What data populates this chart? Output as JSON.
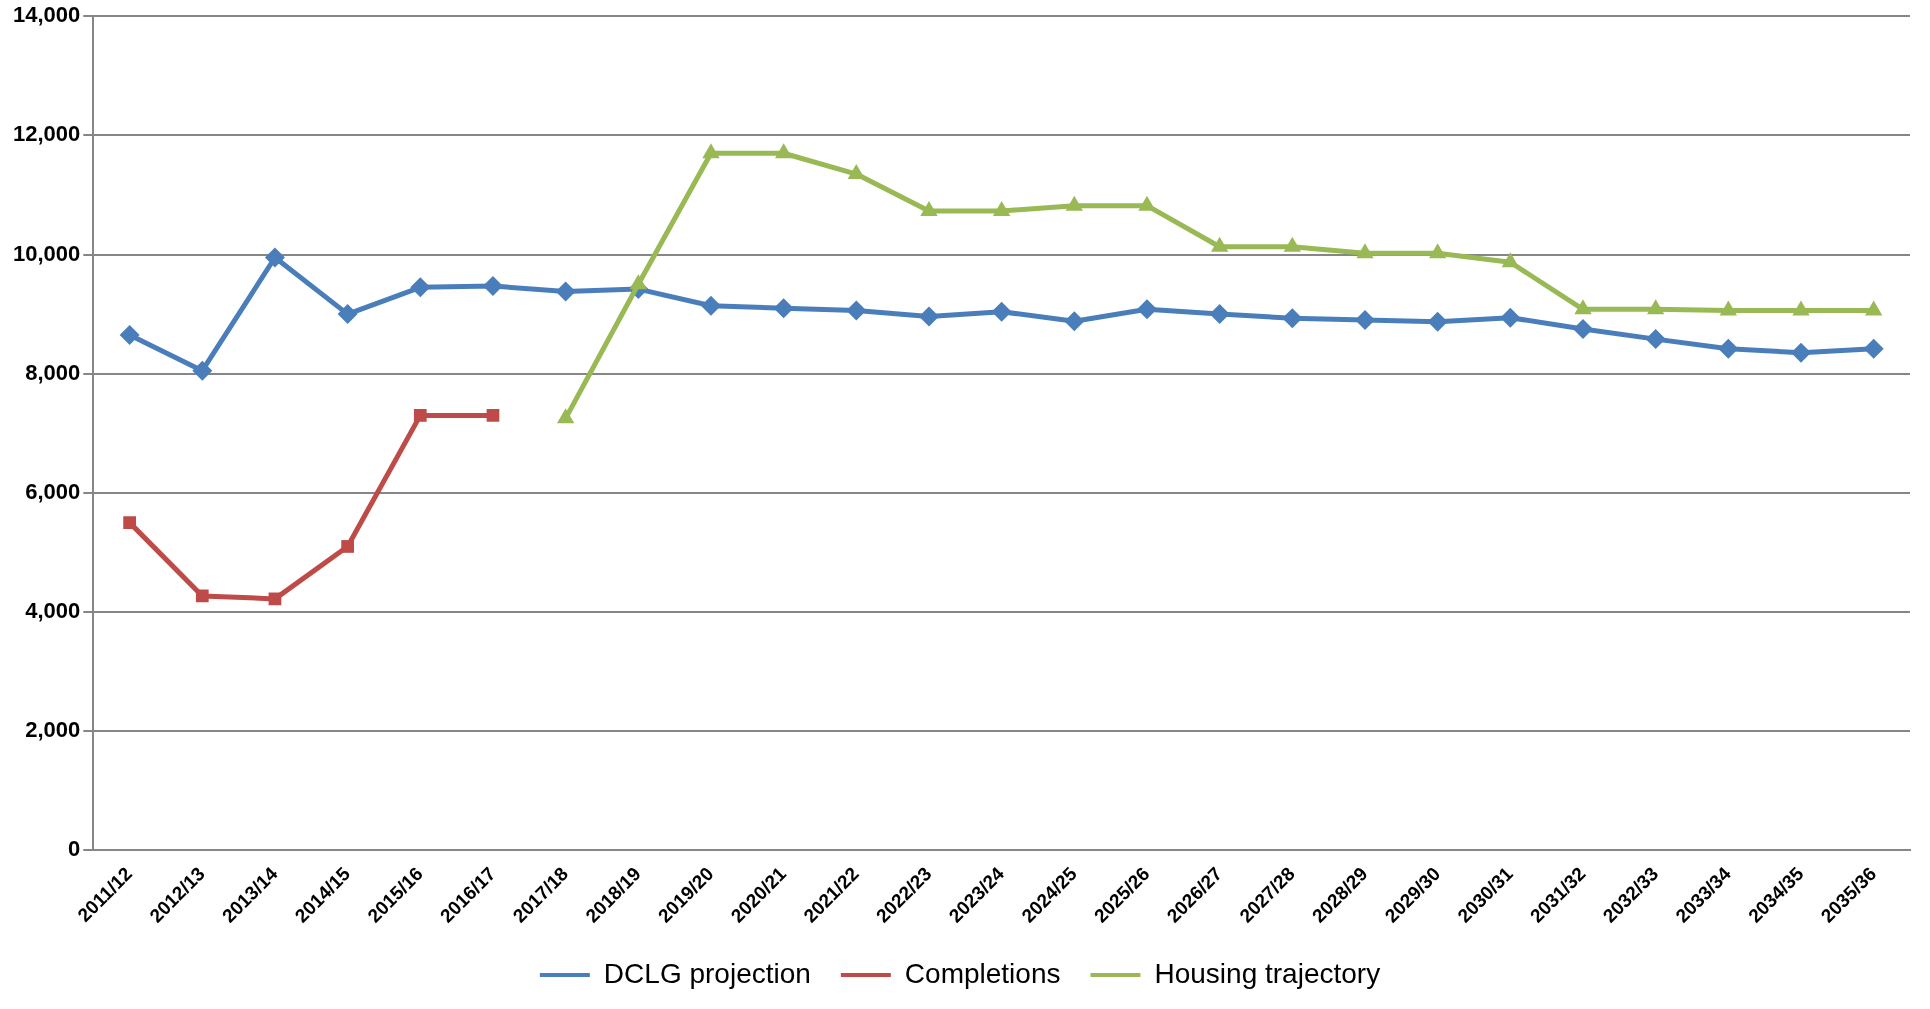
{
  "chart_data": {
    "type": "line",
    "categories": [
      "2011/12",
      "2012/13",
      "2013/14",
      "2014/15",
      "2015/16",
      "2016/17",
      "2017/18",
      "2018/19",
      "2019/20",
      "2020/21",
      "2021/22",
      "2022/23",
      "2023/24",
      "2024/25",
      "2025/26",
      "2026/27",
      "2027/28",
      "2028/29",
      "2029/30",
      "2030/31",
      "2031/32",
      "2032/33",
      "2033/34",
      "2034/35",
      "2035/36"
    ],
    "series": [
      {
        "name": "DCLG projection",
        "color": "#4a7ebb",
        "marker": "diamond",
        "values": [
          8650,
          8050,
          9950,
          9000,
          9450,
          9470,
          9380,
          9420,
          9140,
          9100,
          9060,
          8960,
          9040,
          8880,
          9080,
          9000,
          8930,
          8900,
          8870,
          8940,
          8750,
          8580,
          8420,
          8350,
          8420
        ]
      },
      {
        "name": "Completions",
        "color": "#be4b48",
        "marker": "square",
        "values": [
          5500,
          4270,
          4220,
          5100,
          7300,
          7300,
          null,
          null,
          null,
          null,
          null,
          null,
          null,
          null,
          null,
          null,
          null,
          null,
          null,
          null,
          null,
          null,
          null,
          null,
          null
        ]
      },
      {
        "name": "Housing trajectory",
        "color": "#98b954",
        "marker": "triangle",
        "values": [
          null,
          null,
          null,
          null,
          null,
          null,
          7250,
          9500,
          11700,
          11700,
          11350,
          10730,
          10730,
          10820,
          10820,
          10130,
          10130,
          10020,
          10020,
          9870,
          9080,
          9080,
          9060,
          9060,
          9060
        ]
      }
    ],
    "ylim": [
      0,
      14000
    ],
    "yticks": [
      0,
      {
        "value": 2000,
        "label": "2,000"
      },
      {
        "value": 4000,
        "label": "4,000"
      },
      {
        "value": 6000,
        "label": "6,000"
      },
      {
        "value": 8000,
        "label": "8,000"
      },
      {
        "value": 10000,
        "label": "10,000"
      },
      {
        "value": 12000,
        "label": "12,000"
      },
      {
        "value": 14000,
        "label": "14,000"
      }
    ],
    "grid": "y",
    "legend": "bottom",
    "line_style": "solid"
  }
}
